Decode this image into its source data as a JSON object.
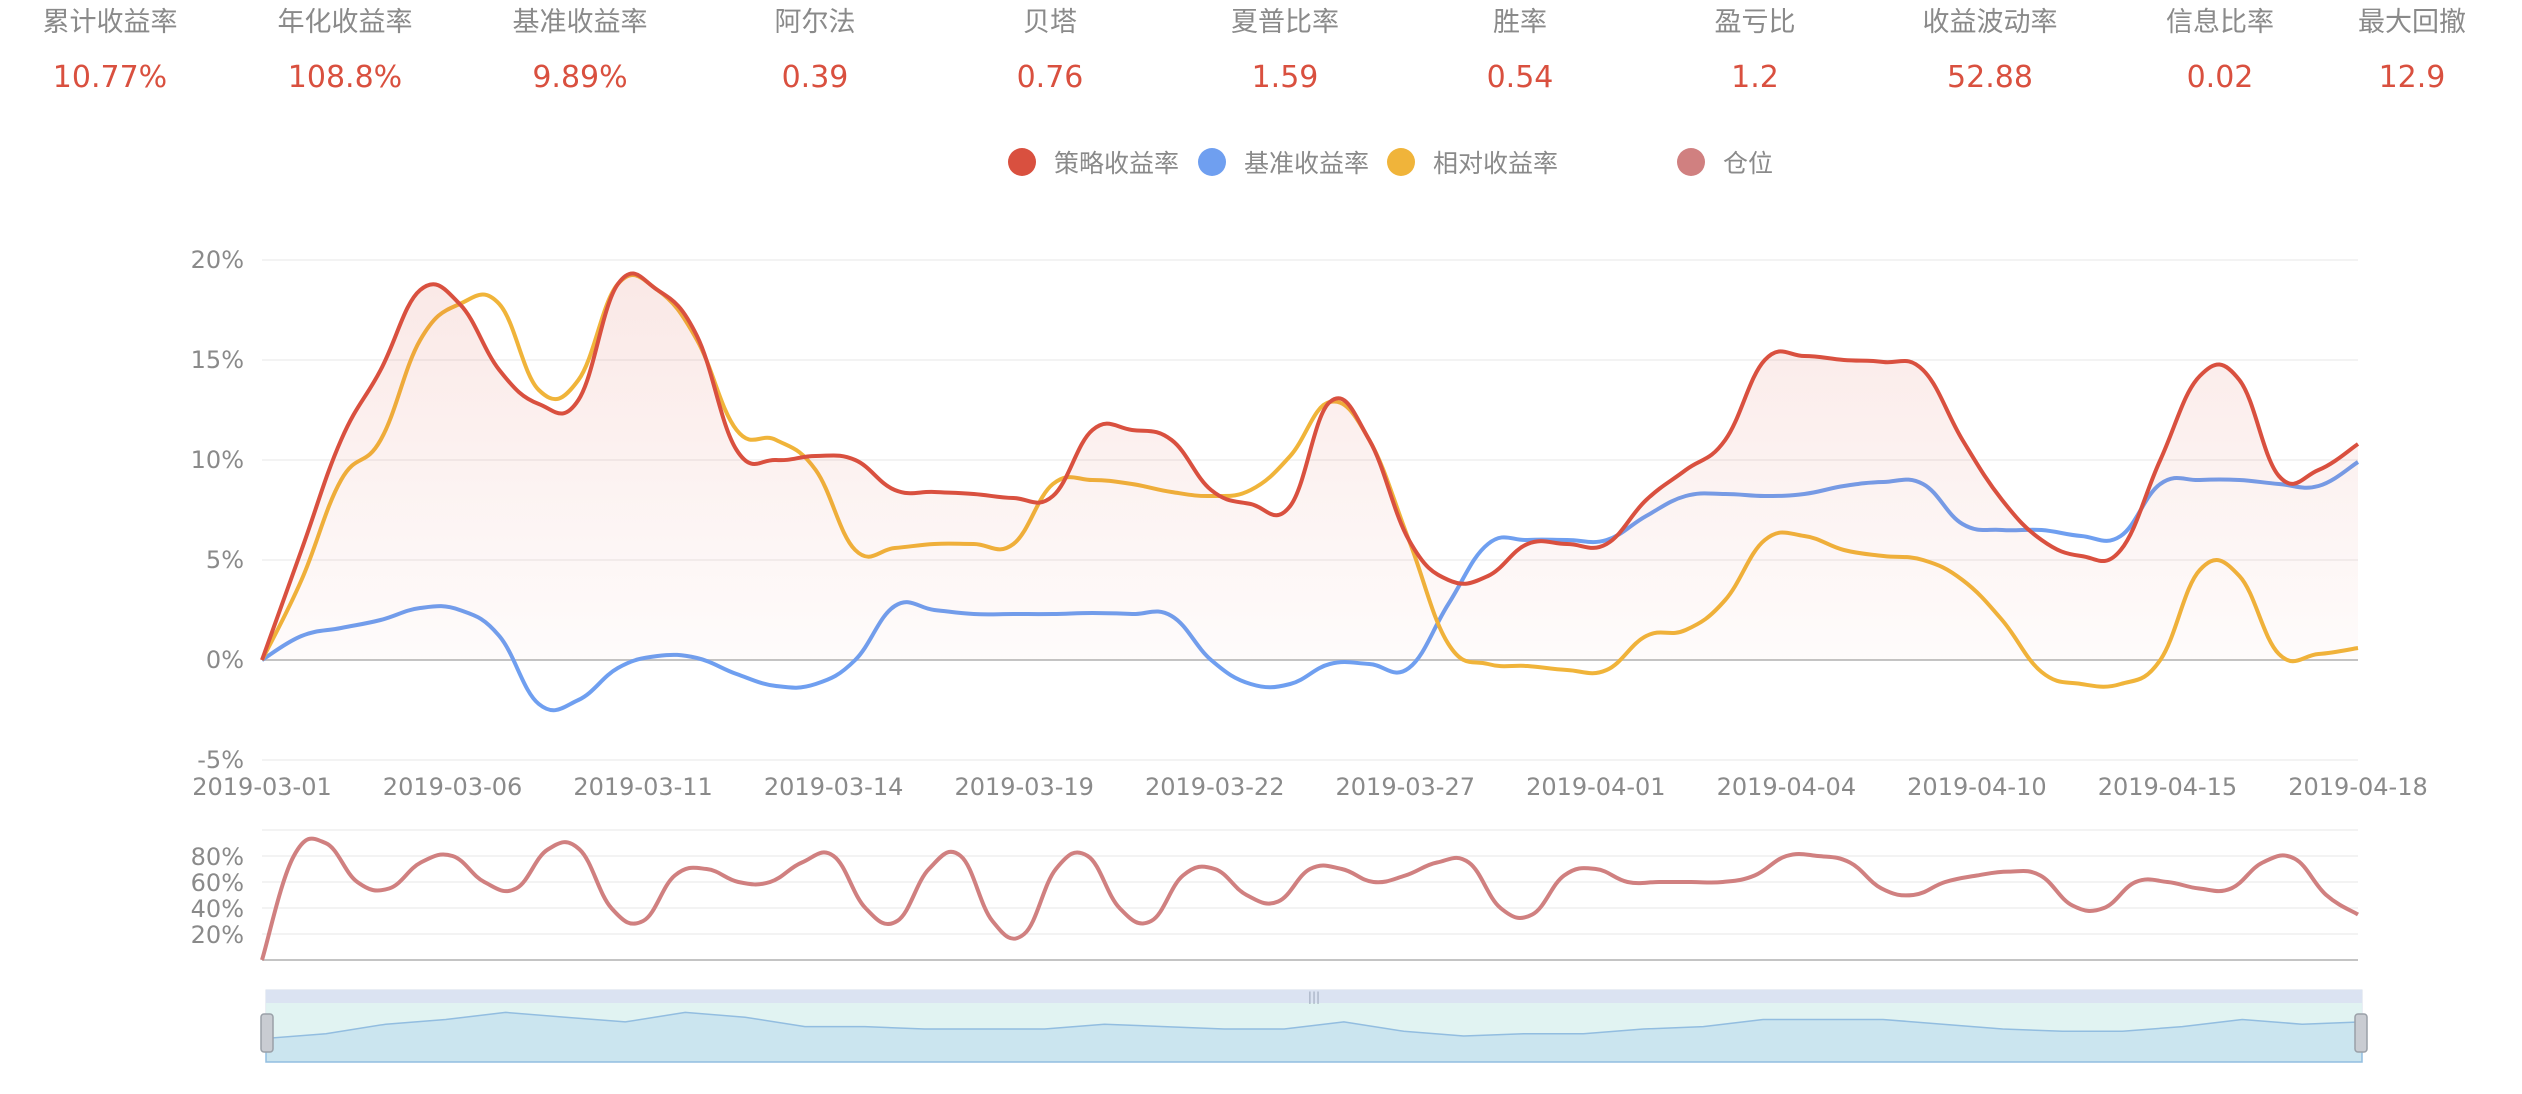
{
  "metrics": [
    {
      "label": "累计收益率",
      "value": "10.77%"
    },
    {
      "label": "年化收益率",
      "value": "108.8%"
    },
    {
      "label": "基准收益率",
      "value": "9.89%"
    },
    {
      "label": "阿尔法",
      "value": "0.39"
    },
    {
      "label": "贝塔",
      "value": "0.76"
    },
    {
      "label": "夏普比率",
      "value": "1.59"
    },
    {
      "label": "胜率",
      "value": "0.54"
    },
    {
      "label": "盈亏比",
      "value": "1.2"
    },
    {
      "label": "收益波动率",
      "value": "52.88"
    },
    {
      "label": "信息比率",
      "value": "0.02"
    },
    {
      "label": "最大回撤",
      "value": "12.9"
    }
  ],
  "colors": {
    "strategy": "#d9503f",
    "benchmark": "#6f9ff0",
    "relative": "#f0b43a",
    "position": "#d08080",
    "metric_value": "#d9503f",
    "label": "#8a8a8a"
  },
  "chart_data": [
    {
      "type": "line",
      "x_tick_labels": [
        "2019-03-01",
        "2019-03-06",
        "2019-03-11",
        "2019-03-14",
        "2019-03-19",
        "2019-03-22",
        "2019-03-27",
        "2019-04-01",
        "2019-04-04",
        "2019-04-10",
        "2019-04-15",
        "2019-04-18"
      ],
      "y_tick_labels": [
        "20%",
        "15%",
        "10%",
        "5%",
        "0%",
        "-5%"
      ],
      "ylim": [
        -5,
        20
      ],
      "grid": true,
      "legend_position": "top-center",
      "series": [
        {
          "name": "策略收益率",
          "color_key": "strategy",
          "area": true,
          "values": [
            0,
            5.5,
            11,
            14.5,
            18.5,
            17.8,
            14.5,
            12.8,
            13,
            18.8,
            18.5,
            16.2,
            10.5,
            10,
            10.2,
            10,
            8.5,
            8.4,
            8.3,
            8.1,
            8.2,
            11.5,
            11.5,
            11,
            8.5,
            7.8,
            7.7,
            12.9,
            11,
            6,
            4,
            4.2,
            5.8,
            5.8,
            5.8,
            8,
            9.5,
            11,
            15,
            15.2,
            15,
            14.9,
            14.5,
            11,
            8,
            6,
            5.2,
            5.5,
            10,
            14.2,
            14,
            9.2,
            9.5,
            10.8
          ]
        },
        {
          "name": "基准收益率",
          "color_key": "benchmark",
          "area": false,
          "values": [
            0,
            1.2,
            1.6,
            2,
            2.6,
            2.5,
            1.2,
            -2.2,
            -2,
            -0.4,
            0.2,
            0.1,
            -0.7,
            -1.3,
            -1.2,
            0,
            2.7,
            2.5,
            2.3,
            2.3,
            2.3,
            2.35,
            2.3,
            2.2,
            0,
            -1.2,
            -1.2,
            -0.2,
            -0.2,
            -0.4,
            2.8,
            5.8,
            6,
            6,
            6,
            7.2,
            8.2,
            8.3,
            8.2,
            8.3,
            8.7,
            8.9,
            8.8,
            6.8,
            6.5,
            6.5,
            6.2,
            6.2,
            8.8,
            9,
            9,
            8.8,
            8.7,
            9.9
          ]
        },
        {
          "name": "相对收益率",
          "color_key": "relative",
          "area": false,
          "values": [
            0,
            4,
            9,
            11,
            16,
            17.8,
            17.8,
            13.5,
            14,
            18.8,
            18.5,
            16,
            11.5,
            11,
            9.5,
            5.5,
            5.6,
            5.8,
            5.8,
            5.8,
            8.8,
            9,
            8.8,
            8.4,
            8.2,
            8.5,
            10.2,
            12.9,
            11,
            6,
            0.8,
            -0.2,
            -0.3,
            -0.5,
            -0.5,
            1.2,
            1.5,
            3,
            6,
            6.2,
            5.5,
            5.2,
            5,
            4,
            2,
            -0.6,
            -1.2,
            -1.2,
            0,
            4.5,
            4.2,
            0.3,
            0.3,
            0.6
          ]
        }
      ]
    },
    {
      "type": "line",
      "y_tick_labels": [
        "80%",
        "60%",
        "40%",
        "20%"
      ],
      "ylim": [
        0,
        100
      ],
      "series": [
        {
          "name": "仓位",
          "color_key": "position",
          "values": [
            0,
            80,
            90,
            60,
            55,
            75,
            80,
            60,
            55,
            85,
            85,
            40,
            30,
            65,
            70,
            60,
            60,
            75,
            80,
            40,
            30,
            70,
            80,
            30,
            20,
            70,
            80,
            40,
            30,
            65,
            70,
            50,
            45,
            70,
            70,
            60,
            65,
            75,
            75,
            40,
            35,
            65,
            70,
            60,
            60,
            60,
            60,
            65,
            80,
            80,
            75,
            55,
            50,
            60,
            65,
            68,
            65,
            42,
            40,
            60,
            60,
            55,
            55,
            75,
            78,
            50,
            35
          ]
        }
      ]
    }
  ],
  "overview": {
    "values": [
      10,
      12,
      16,
      18,
      21,
      19,
      17,
      21,
      19,
      15,
      15,
      14,
      14,
      14,
      16,
      15,
      14,
      14,
      17,
      13,
      11,
      12,
      12,
      14,
      15,
      18,
      18,
      18,
      16,
      14,
      13,
      13,
      15,
      18,
      16,
      17
    ]
  }
}
